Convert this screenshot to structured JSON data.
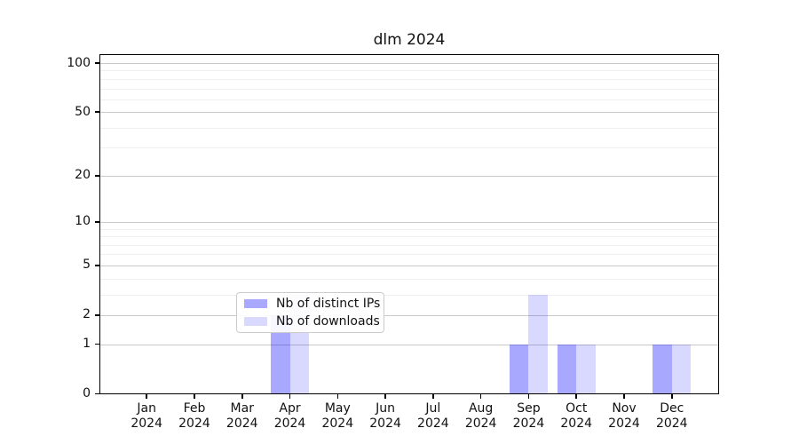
{
  "chart_data": {
    "type": "bar",
    "title": "dlm 2024",
    "categories": [
      "Jan",
      "Feb",
      "Mar",
      "Apr",
      "May",
      "Jun",
      "Jul",
      "Aug",
      "Sep",
      "Oct",
      "Nov",
      "Dec"
    ],
    "category_year": "2024",
    "series": [
      {
        "name": "Nb of distinct IPs",
        "color": "#0000ff",
        "alpha": 0.34,
        "rendered_color": "#a6a6f4",
        "values": [
          0,
          0,
          0,
          2,
          0,
          0,
          0,
          0,
          1,
          1,
          0,
          1
        ]
      },
      {
        "name": "Nb of downloads",
        "color": "#0000ff",
        "alpha": 0.15,
        "rendered_color": "#d9d9fa",
        "values": [
          0,
          0,
          0,
          3,
          0,
          0,
          0,
          0,
          3,
          1,
          0,
          1
        ]
      }
    ],
    "yscale": "log1p",
    "ylim": [
      0,
      114
    ],
    "yticks": [
      0,
      1,
      2,
      5,
      10,
      20,
      50,
      100
    ],
    "yticks_minor": [
      3,
      4,
      6,
      7,
      8,
      9,
      30,
      40,
      60,
      70,
      80,
      90
    ],
    "grid": true,
    "grid_major_color": "#c9c9c9",
    "grid_minor_color": "#efefef",
    "legend_position": "lower center",
    "xlabel": "",
    "ylabel": ""
  }
}
